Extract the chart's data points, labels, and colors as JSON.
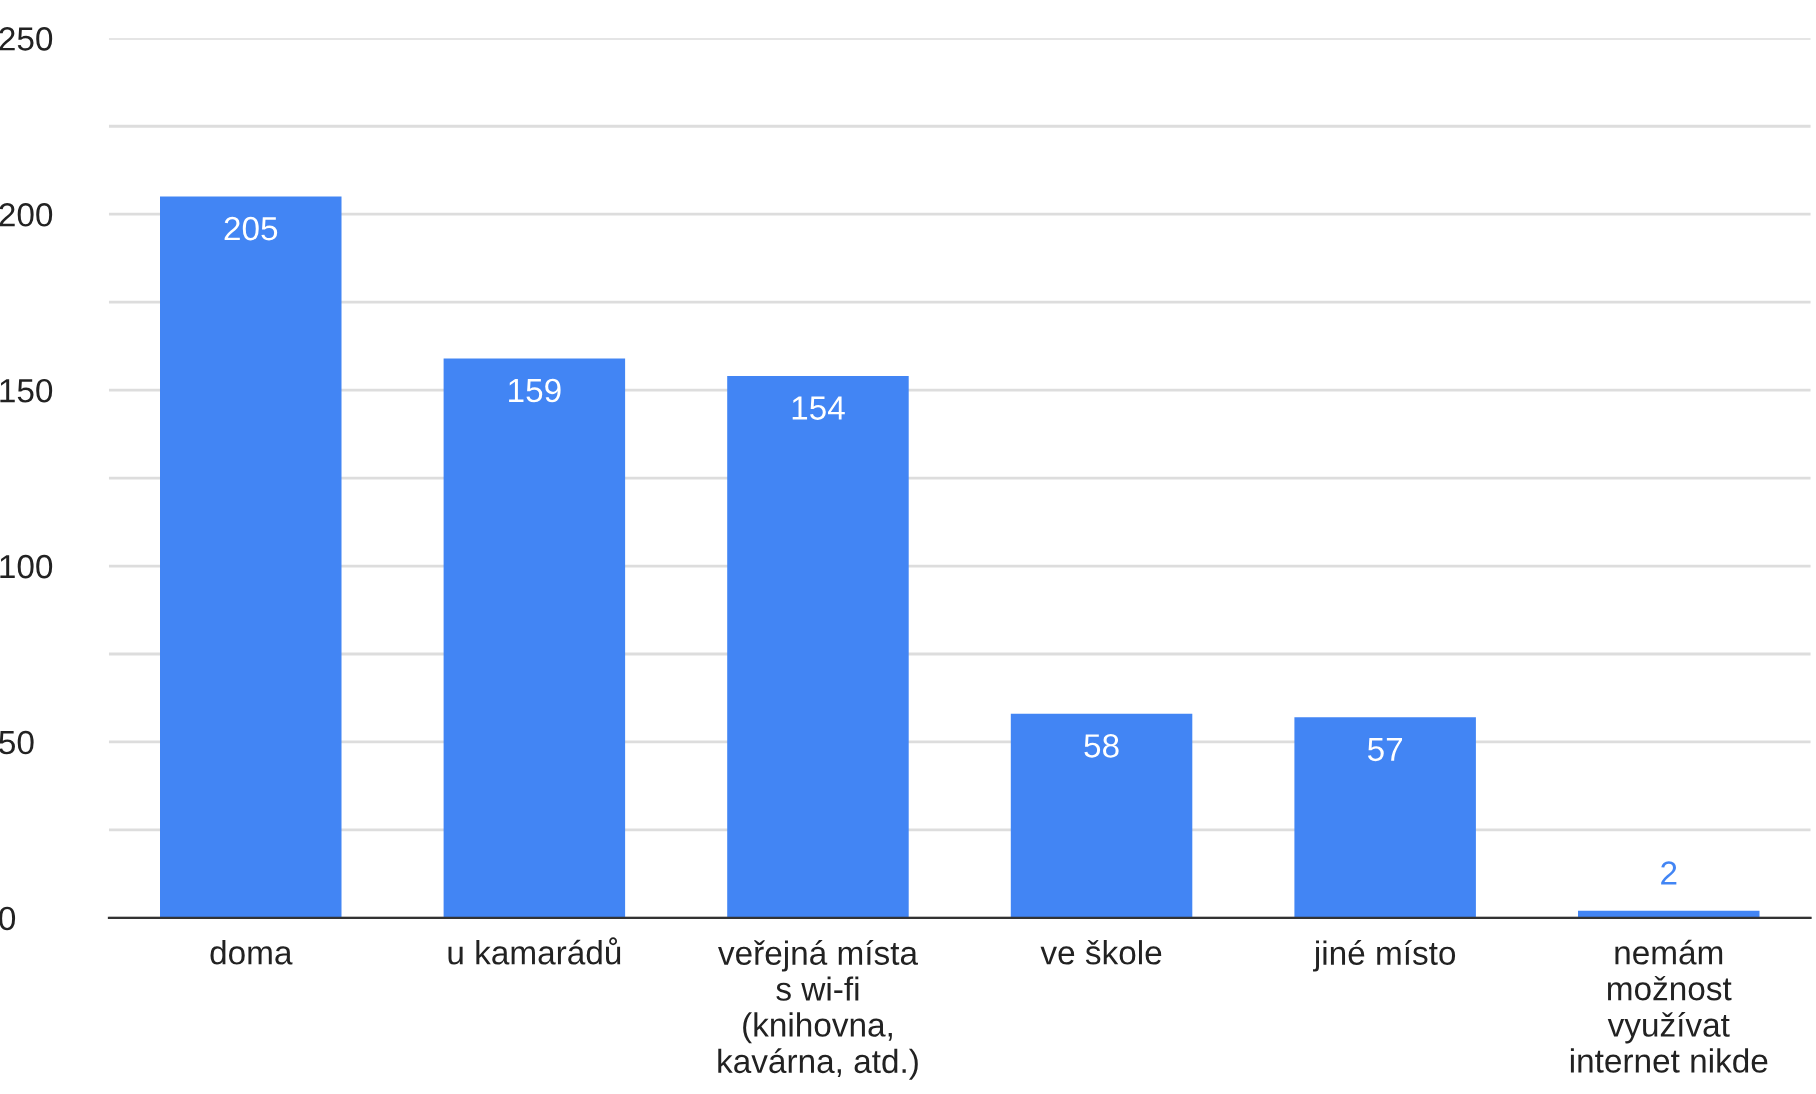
{
  "chart_data": {
    "type": "bar",
    "categories": [
      "doma",
      "u kamarádů",
      "veřejná místa\ns wi-fi\n(knihovna,\nkavárna, atd.)",
      "ve škole",
      "jiné místo",
      "nemám\nmožnost\nvyužívat\ninternet nikde"
    ],
    "values": [
      205,
      159,
      154,
      58,
      57,
      2
    ],
    "color": "#4285f4",
    "ylim": [
      0,
      250
    ],
    "yticks": [
      0,
      {
        "value": 25,
        "label": null
      },
      50,
      {
        "value": 75,
        "label": null
      },
      100,
      {
        "value": 125,
        "label": null
      },
      150,
      {
        "value": 175,
        "label": null
      },
      200,
      {
        "value": 225,
        "label": null
      },
      250
    ],
    "grid": "y",
    "data_labels": true
  }
}
